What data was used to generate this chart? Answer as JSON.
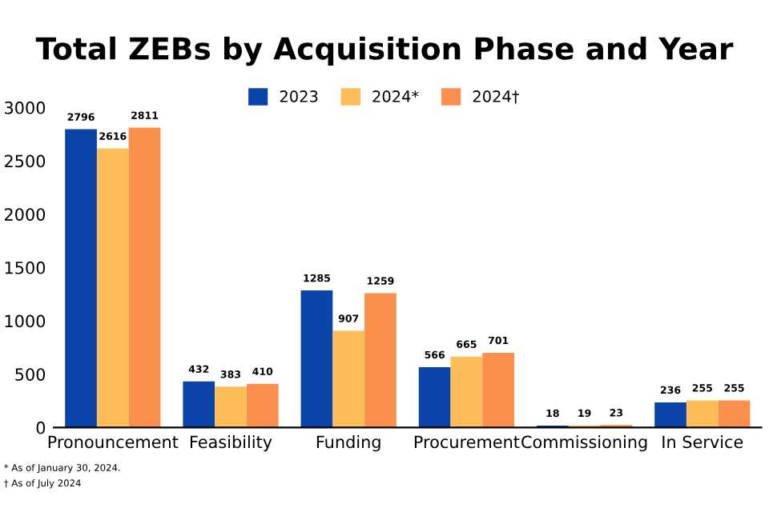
{
  "chart_data": {
    "type": "bar",
    "title": "Total ZEBs by Acquisition Phase and Year",
    "categories": [
      "Pronouncement",
      "Feasibility",
      "Funding",
      "Procurement",
      "Commissioning",
      "In Service"
    ],
    "series": [
      {
        "name": "2023",
        "color": "#0a44a8",
        "values": [
          2796,
          432,
          1285,
          566,
          18,
          236
        ]
      },
      {
        "name": "2024*",
        "color": "#fdbd59",
        "values": [
          2616,
          383,
          907,
          665,
          19,
          255
        ]
      },
      {
        "name": "2024†",
        "color": "#fb8f4e",
        "values": [
          2811,
          410,
          1259,
          701,
          23,
          255
        ]
      }
    ],
    "ylim": [
      0,
      3000
    ],
    "yticks": [
      0,
      500,
      1000,
      1500,
      2000,
      2500,
      3000
    ],
    "grid": false,
    "legend": "top",
    "data_labels": true,
    "annotations": [
      "* As of January 30, 2024.",
      "† As of July 2024"
    ]
  }
}
